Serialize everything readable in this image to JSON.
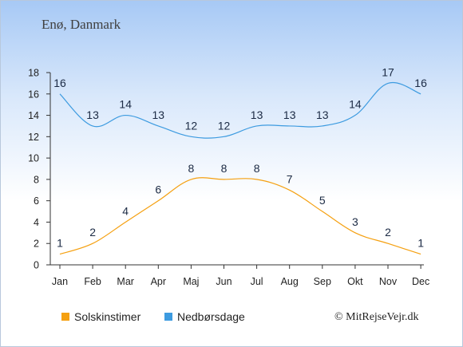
{
  "location": "Enø, Danmark",
  "credit": "© MitRejseVejr.dk",
  "chart_data": {
    "type": "line",
    "categories": [
      "Jan",
      "Feb",
      "Mar",
      "Apr",
      "Maj",
      "Jun",
      "Jul",
      "Aug",
      "Sep",
      "Okt",
      "Nov",
      "Dec"
    ],
    "yticks": [
      "0",
      "2",
      "4",
      "6",
      "8",
      "10",
      "12",
      "14",
      "16",
      "18"
    ],
    "ylim": [
      0,
      18
    ],
    "grid": false,
    "legend_position": "bottom-left",
    "series": [
      {
        "name": "Solskinstimer",
        "color": "#f5a010",
        "values": [
          1,
          2,
          4,
          6,
          8,
          8,
          8,
          7,
          5,
          3,
          2,
          1
        ]
      },
      {
        "name": "Nedbørsdage",
        "color": "#3d9be0",
        "values": [
          16,
          13,
          14,
          13,
          12,
          12,
          13,
          13,
          13,
          14,
          17,
          16
        ]
      }
    ]
  }
}
